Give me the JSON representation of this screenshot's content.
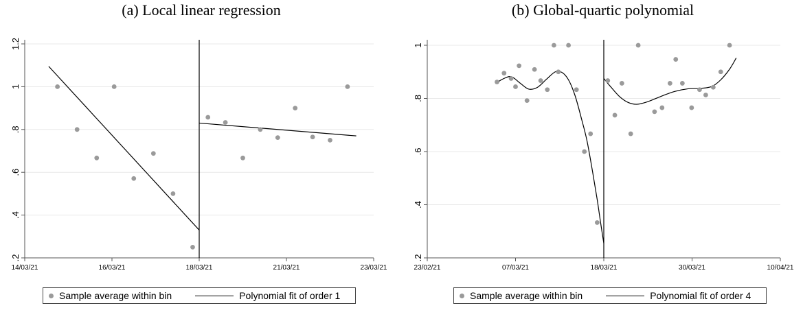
{
  "legend": {
    "points_label": "Sample average within bin",
    "fit1_label": "Polynomial fit of order 1",
    "fit4_label": "Polynomial fit of order 4"
  },
  "colors": {
    "points": "#9a9a9a",
    "line": "#000000",
    "grid": "#e8e8e8",
    "axis": "#555555"
  },
  "chart_data": [
    {
      "type": "scatter",
      "title": "(a) Local linear regression",
      "x_axis": {
        "ticks": [
          {
            "label": "14/03/21",
            "value": 0
          },
          {
            "label": "16/03/21",
            "value": 2
          },
          {
            "label": "18/03/21",
            "value": 4
          },
          {
            "label": "21/03/21",
            "value": 6
          },
          {
            "label": "23/03/21",
            "value": 8
          }
        ],
        "range": [
          0,
          8
        ]
      },
      "y_axis": {
        "ticks": [
          {
            "label": ".2",
            "value": 0.2
          },
          {
            "label": ".4",
            "value": 0.4
          },
          {
            "label": ".6",
            "value": 0.6
          },
          {
            "label": ".8",
            "value": 0.8
          },
          {
            "label": "1",
            "value": 1.0
          },
          {
            "label": "1.2",
            "value": 1.2
          }
        ],
        "range": [
          0.2,
          1.2
        ]
      },
      "grid": true,
      "cutoff_x": 4,
      "points": [
        {
          "x": 0.75,
          "y": 1.0
        },
        {
          "x": 1.2,
          "y": 0.8
        },
        {
          "x": 1.65,
          "y": 0.667
        },
        {
          "x": 2.05,
          "y": 1.0
        },
        {
          "x": 2.5,
          "y": 0.571
        },
        {
          "x": 2.95,
          "y": 0.688
        },
        {
          "x": 3.4,
          "y": 0.5
        },
        {
          "x": 3.85,
          "y": 0.25
        },
        {
          "x": 4.2,
          "y": 0.857
        },
        {
          "x": 4.6,
          "y": 0.833
        },
        {
          "x": 5.0,
          "y": 0.667
        },
        {
          "x": 5.4,
          "y": 0.8
        },
        {
          "x": 5.8,
          "y": 0.762
        },
        {
          "x": 6.2,
          "y": 0.9
        },
        {
          "x": 6.6,
          "y": 0.765
        },
        {
          "x": 7.0,
          "y": 0.75
        },
        {
          "x": 7.4,
          "y": 1.0
        }
      ],
      "fit": [
        {
          "segment": "left",
          "points": [
            {
              "x": 0.55,
              "y": 1.095
            },
            {
              "x": 4.0,
              "y": 0.33
            }
          ]
        },
        {
          "segment": "right",
          "points": [
            {
              "x": 4.0,
              "y": 0.83
            },
            {
              "x": 7.6,
              "y": 0.77
            }
          ]
        }
      ]
    },
    {
      "type": "scatter",
      "title": "(b) Global-quartic polynomial",
      "x_axis": {
        "ticks": [
          {
            "label": "23/02/21",
            "value": 0
          },
          {
            "label": "07/03/21",
            "value": 2
          },
          {
            "label": "18/03/21",
            "value": 4
          },
          {
            "label": "30/03/21",
            "value": 6
          },
          {
            "label": "10/04/21",
            "value": 8
          }
        ],
        "range": [
          0,
          8
        ]
      },
      "y_axis": {
        "ticks": [
          {
            "label": ".2",
            "value": 0.2
          },
          {
            "label": ".4",
            "value": 0.4
          },
          {
            "label": ".6",
            "value": 0.6
          },
          {
            "label": ".8",
            "value": 0.8
          },
          {
            "label": "1",
            "value": 1.0
          }
        ],
        "range": [
          0.2,
          1.0
        ]
      },
      "grid": true,
      "cutoff_x": 4,
      "points": [
        {
          "x": 1.58,
          "y": 0.862
        },
        {
          "x": 1.74,
          "y": 0.895
        },
        {
          "x": 1.9,
          "y": 0.875
        },
        {
          "x": 2.0,
          "y": 0.844
        },
        {
          "x": 2.08,
          "y": 0.923
        },
        {
          "x": 2.26,
          "y": 0.792
        },
        {
          "x": 2.43,
          "y": 0.909
        },
        {
          "x": 2.57,
          "y": 0.867
        },
        {
          "x": 2.72,
          "y": 0.833
        },
        {
          "x": 2.87,
          "y": 1.0
        },
        {
          "x": 2.97,
          "y": 0.9
        },
        {
          "x": 3.2,
          "y": 1.0
        },
        {
          "x": 3.38,
          "y": 0.833
        },
        {
          "x": 3.56,
          "y": 0.6
        },
        {
          "x": 3.7,
          "y": 0.667
        },
        {
          "x": 3.85,
          "y": 0.333
        },
        {
          "x": 4.09,
          "y": 0.867
        },
        {
          "x": 4.25,
          "y": 0.737
        },
        {
          "x": 4.41,
          "y": 0.857
        },
        {
          "x": 4.61,
          "y": 0.667
        },
        {
          "x": 4.78,
          "y": 1.0
        },
        {
          "x": 5.15,
          "y": 0.75
        },
        {
          "x": 5.32,
          "y": 0.765
        },
        {
          "x": 5.5,
          "y": 0.857
        },
        {
          "x": 5.63,
          "y": 0.947
        },
        {
          "x": 5.78,
          "y": 0.857
        },
        {
          "x": 5.99,
          "y": 0.765
        },
        {
          "x": 6.17,
          "y": 0.833
        },
        {
          "x": 6.31,
          "y": 0.813
        },
        {
          "x": 6.48,
          "y": 0.842
        },
        {
          "x": 6.65,
          "y": 0.9
        },
        {
          "x": 6.85,
          "y": 1.0
        }
      ],
      "fit": [
        {
          "segment": "left",
          "points": [
            {
              "x": 1.55,
              "y": 0.855
            },
            {
              "x": 1.7,
              "y": 0.872
            },
            {
              "x": 1.9,
              "y": 0.882
            },
            {
              "x": 2.1,
              "y": 0.858
            },
            {
              "x": 2.3,
              "y": 0.835
            },
            {
              "x": 2.5,
              "y": 0.842
            },
            {
              "x": 2.7,
              "y": 0.872
            },
            {
              "x": 2.9,
              "y": 0.9
            },
            {
              "x": 3.05,
              "y": 0.898
            },
            {
              "x": 3.2,
              "y": 0.87
            },
            {
              "x": 3.35,
              "y": 0.81
            },
            {
              "x": 3.5,
              "y": 0.72
            },
            {
              "x": 3.62,
              "y": 0.64
            },
            {
              "x": 3.75,
              "y": 0.52
            },
            {
              "x": 3.85,
              "y": 0.42
            },
            {
              "x": 3.93,
              "y": 0.33
            },
            {
              "x": 4.0,
              "y": 0.255
            }
          ]
        },
        {
          "segment": "right",
          "points": [
            {
              "x": 4.0,
              "y": 0.875
            },
            {
              "x": 4.15,
              "y": 0.845
            },
            {
              "x": 4.35,
              "y": 0.808
            },
            {
              "x": 4.55,
              "y": 0.785
            },
            {
              "x": 4.75,
              "y": 0.778
            },
            {
              "x": 5.0,
              "y": 0.788
            },
            {
              "x": 5.3,
              "y": 0.808
            },
            {
              "x": 5.6,
              "y": 0.826
            },
            {
              "x": 5.9,
              "y": 0.836
            },
            {
              "x": 6.2,
              "y": 0.838
            },
            {
              "x": 6.45,
              "y": 0.845
            },
            {
              "x": 6.65,
              "y": 0.87
            },
            {
              "x": 6.85,
              "y": 0.91
            },
            {
              "x": 7.0,
              "y": 0.952
            }
          ]
        }
      ]
    }
  ]
}
